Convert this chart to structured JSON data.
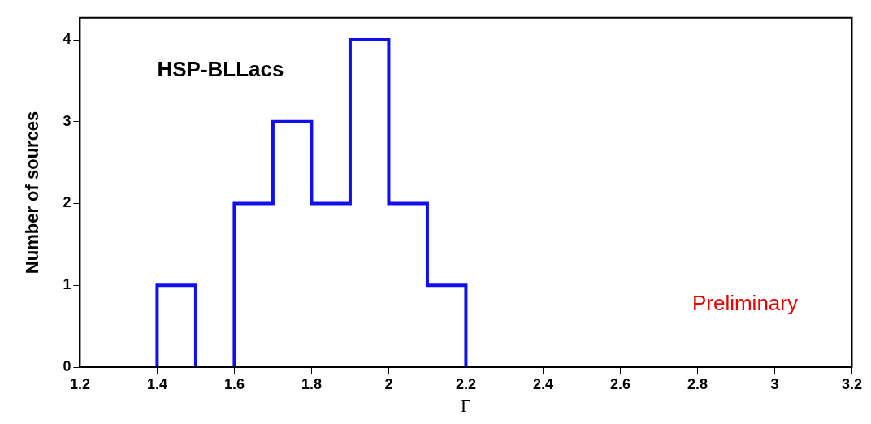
{
  "chart_data": {
    "type": "histogram",
    "xlabel": "Γ",
    "ylabel": "Number of sources",
    "bins": [
      1.2,
      1.3,
      1.4,
      1.5,
      1.6,
      1.7,
      1.8,
      1.9,
      2.0,
      2.1,
      2.2,
      2.3,
      2.4,
      2.5,
      2.6,
      2.7,
      2.8,
      2.9,
      3.0,
      3.1,
      3.2
    ],
    "values": [
      0,
      0,
      1,
      0,
      2,
      3,
      2,
      4,
      2,
      1,
      0,
      0,
      0,
      0,
      0,
      0,
      0,
      0,
      0,
      0
    ],
    "color": "#1010ee",
    "xlim": [
      1.2,
      3.2
    ],
    "xticks": [
      1.2,
      1.4,
      1.6,
      1.8,
      2,
      2.2,
      2.4,
      2.6,
      2.8,
      3,
      3.2
    ],
    "ylim": [
      0,
      4.27
    ],
    "yticks": [
      0,
      1,
      2,
      3,
      4
    ],
    "grid": false,
    "legend": false,
    "annotations": [
      "HSP-BLLacs",
      "Preliminary"
    ]
  }
}
